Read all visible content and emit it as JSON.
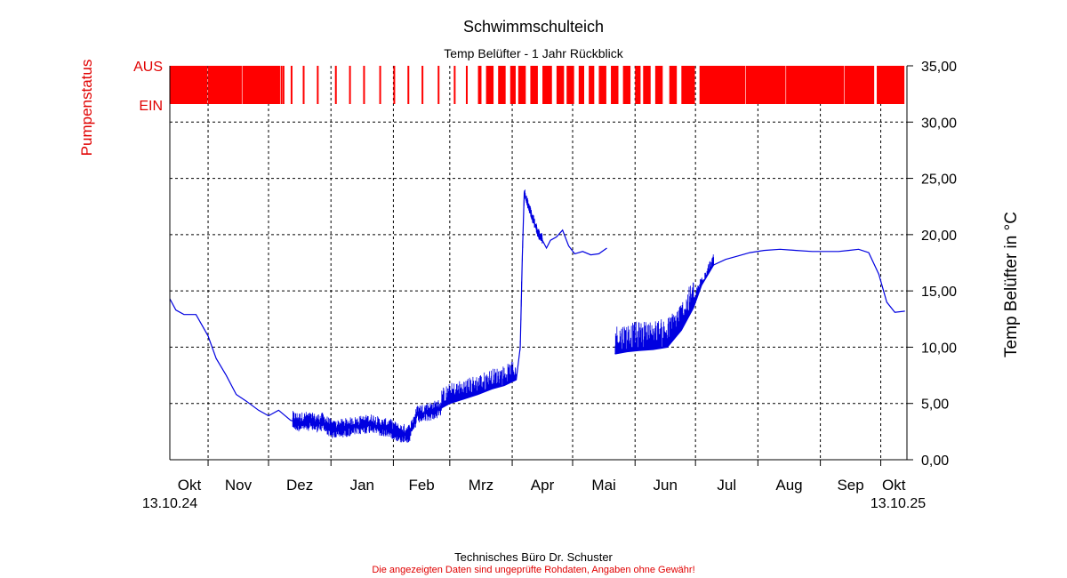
{
  "chart_data": {
    "type": "line",
    "title": "Schwimmschulteich",
    "subtitle": "Temp Belüfter - 1 Jahr Rückblick",
    "ylabel": "Temp Belüfter in °C",
    "y2label": "Pumpenstatus",
    "ylim": [
      0,
      35
    ],
    "yticks": [
      "0,00",
      "5,00",
      "10,00",
      "15,00",
      "20,00",
      "25,00",
      "30,00",
      "35,00"
    ],
    "pump_labels": [
      "AUS",
      "EIN"
    ],
    "x_start_label": "13.10.24",
    "x_end_label": "13.10.25",
    "x_range": [
      "2024-10-13",
      "2025-10-13"
    ],
    "months": [
      {
        "label": "Okt",
        "start": "2024-10-01"
      },
      {
        "label": "Nov",
        "start": "2024-11-01"
      },
      {
        "label": "Dez",
        "start": "2024-12-01"
      },
      {
        "label": "Jan",
        "start": "2025-01-01"
      },
      {
        "label": "Feb",
        "start": "2025-02-01"
      },
      {
        "label": "Mrz",
        "start": "2025-03-01"
      },
      {
        "label": "Apr",
        "start": "2025-04-01"
      },
      {
        "label": "Mai",
        "start": "2025-05-01"
      },
      {
        "label": "Jun",
        "start": "2025-06-01"
      },
      {
        "label": "Jul",
        "start": "2025-07-01"
      },
      {
        "label": "Aug",
        "start": "2025-08-01"
      },
      {
        "label": "Sep",
        "start": "2025-09-01"
      },
      {
        "label": "Okt",
        "start": "2025-10-01"
      }
    ],
    "grid": true,
    "series": [
      {
        "color": "#0000e0",
        "segments": [
          {
            "x": [
              "2024-10-13",
              "2024-10-16",
              "2024-10-20",
              "2024-10-26",
              "2024-11-01",
              "2024-11-05",
              "2024-11-10",
              "2024-11-15",
              "2024-11-20",
              "2024-11-26",
              "2024-12-01",
              "2024-12-06",
              "2024-12-12",
              "2024-12-16",
              "2024-12-20",
              "2024-12-25",
              "2024-12-28",
              "2025-01-02",
              "2025-01-08",
              "2025-01-15",
              "2025-01-22",
              "2025-01-26",
              "2025-01-30",
              "2025-02-04",
              "2025-02-09",
              "2025-02-13",
              "2025-02-18",
              "2025-02-24",
              "2025-03-01",
              "2025-03-08",
              "2025-03-15",
              "2025-03-22",
              "2025-03-28",
              "2025-04-03",
              "2025-04-05",
              "2025-04-06",
              "2025-04-07",
              "2025-04-09",
              "2025-04-11",
              "2025-04-14",
              "2025-04-16",
              "2025-04-18",
              "2025-04-20",
              "2025-04-23",
              "2025-04-26",
              "2025-04-29",
              "2025-05-02",
              "2025-05-06",
              "2025-05-10",
              "2025-05-14",
              "2025-05-18"
            ],
            "y": [
              14.3,
              13.3,
              12.9,
              12.9,
              11.0,
              9.0,
              7.5,
              5.8,
              5.2,
              4.4,
              3.9,
              4.4,
              3.5,
              3.3,
              3.4,
              3.2,
              3.3,
              2.6,
              2.8,
              3.0,
              3.2,
              2.8,
              2.8,
              2.3,
              2.3,
              4.0,
              4.2,
              4.5,
              5.0,
              5.4,
              5.8,
              6.3,
              6.6,
              7.1,
              10.0,
              18.0,
              23.8,
              22.5,
              21.5,
              20.0,
              19.5,
              18.8,
              19.5,
              19.8,
              20.4,
              19.0,
              18.3,
              18.5,
              18.2,
              18.3,
              18.8
            ]
          },
          {
            "x": [
              "2025-05-22",
              "2025-05-28",
              "2025-06-03",
              "2025-06-10",
              "2025-06-17",
              "2025-06-24",
              "2025-06-30",
              "2025-07-04",
              "2025-07-10",
              "2025-07-16",
              "2025-07-22",
              "2025-07-28",
              "2025-08-04",
              "2025-08-12",
              "2025-08-20",
              "2025-08-28",
              "2025-09-04",
              "2025-09-10",
              "2025-09-15",
              "2025-09-20",
              "2025-09-25",
              "2025-09-30",
              "2025-10-04",
              "2025-10-08",
              "2025-10-13"
            ],
            "y": [
              9.4,
              9.6,
              9.7,
              9.8,
              10.0,
              11.5,
              13.5,
              15.5,
              17.3,
              17.8,
              18.1,
              18.4,
              18.6,
              18.7,
              18.6,
              18.5,
              18.5,
              18.5,
              18.6,
              18.7,
              18.4,
              16.5,
              14.0,
              13.1,
              13.2
            ]
          }
        ],
        "noise_bands": [
          {
            "from": "2024-12-13",
            "to": "2025-02-25",
            "low": -0.8,
            "high": 0.9
          },
          {
            "from": "2025-02-25",
            "to": "2025-04-03",
            "low": 0,
            "high": 1.8
          },
          {
            "from": "2025-04-05",
            "to": "2025-04-16",
            "low": -0.4,
            "high": 0.6
          },
          {
            "from": "2025-05-22",
            "to": "2025-06-30",
            "low": 0,
            "high": 2.6
          },
          {
            "from": "2025-06-30",
            "to": "2025-07-10",
            "low": 0,
            "high": 1.0
          }
        ]
      }
    ],
    "pump_on_periods": [
      [
        "2024-10-13",
        "2024-10-31"
      ],
      [
        "2024-11-01",
        "2024-11-17"
      ],
      [
        "2024-11-18",
        "2024-12-06"
      ],
      [
        "2024-12-07",
        "2024-12-07"
      ],
      [
        "2024-12-08",
        "2024-12-08"
      ],
      [
        "2024-12-12",
        "2024-12-12"
      ],
      [
        "2024-12-18",
        "2024-12-18"
      ],
      [
        "2024-12-25",
        "2024-12-25"
      ],
      [
        "2025-01-03",
        "2025-01-03"
      ],
      [
        "2025-01-10",
        "2025-01-10"
      ],
      [
        "2025-01-17",
        "2025-01-17"
      ],
      [
        "2025-01-25",
        "2025-01-25"
      ],
      [
        "2025-02-01",
        "2025-02-01"
      ],
      [
        "2025-02-08",
        "2025-02-08"
      ],
      [
        "2025-02-15",
        "2025-02-15"
      ],
      [
        "2025-02-23",
        "2025-02-23"
      ],
      [
        "2025-03-03",
        "2025-03-03"
      ],
      [
        "2025-03-09",
        "2025-03-09"
      ],
      [
        "2025-03-15",
        "2025-03-16"
      ],
      [
        "2025-03-19",
        "2025-03-22"
      ],
      [
        "2025-03-25",
        "2025-03-28"
      ],
      [
        "2025-03-31",
        "2025-04-02"
      ],
      [
        "2025-04-04",
        "2025-04-07"
      ],
      [
        "2025-04-10",
        "2025-04-13"
      ],
      [
        "2025-04-16",
        "2025-04-20"
      ],
      [
        "2025-04-23",
        "2025-04-26"
      ],
      [
        "2025-04-28",
        "2025-05-01"
      ],
      [
        "2025-05-04",
        "2025-05-06"
      ],
      [
        "2025-05-09",
        "2025-05-11"
      ],
      [
        "2025-05-14",
        "2025-05-17"
      ],
      [
        "2025-05-20",
        "2025-05-23"
      ],
      [
        "2025-05-26",
        "2025-05-29"
      ],
      [
        "2025-06-01",
        "2025-06-03"
      ],
      [
        "2025-06-05",
        "2025-06-08"
      ],
      [
        "2025-06-11",
        "2025-06-14"
      ],
      [
        "2025-06-18",
        "2025-06-21"
      ],
      [
        "2025-06-24",
        "2025-06-30"
      ],
      [
        "2025-07-03",
        "2025-07-25"
      ],
      [
        "2025-07-26",
        "2025-08-14"
      ],
      [
        "2025-08-15",
        "2025-09-12"
      ],
      [
        "2025-09-13",
        "2025-09-27"
      ],
      [
        "2025-09-29",
        "2025-10-12"
      ]
    ]
  },
  "footer": {
    "line1": "Technisches Büro Dr. Schuster",
    "line2": "Die angezeigten Daten sind ungeprüfte Rohdaten, Angaben ohne Gewähr!"
  }
}
